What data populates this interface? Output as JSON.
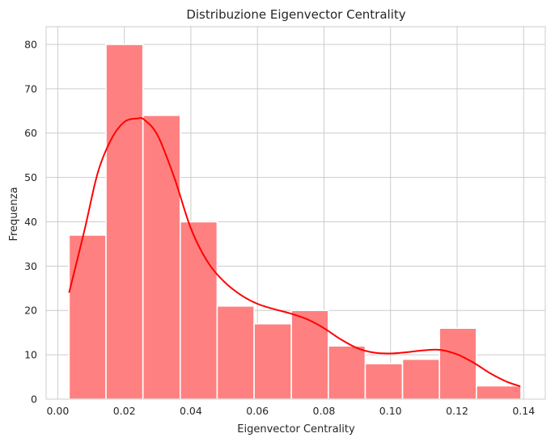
{
  "chart_data": {
    "type": "histogram",
    "title": "Distribuzione Eigenvector Centrality",
    "xlabel": "Eigenvector Centrality",
    "ylabel": "Frequenza",
    "xlim": [
      -0.0035,
      0.1465
    ],
    "ylim": [
      0,
      84
    ],
    "x_ticks": [
      0.0,
      0.02,
      0.04,
      0.06,
      0.08,
      0.1,
      0.12,
      0.14
    ],
    "x_tick_labels": [
      "0.00",
      "0.02",
      "0.04",
      "0.06",
      "0.08",
      "0.10",
      "0.12",
      "0.14"
    ],
    "y_ticks": [
      0,
      10,
      20,
      30,
      40,
      50,
      60,
      70,
      80
    ],
    "y_tick_labels": [
      "0",
      "10",
      "20",
      "30",
      "40",
      "50",
      "60",
      "70",
      "80"
    ],
    "grid": true,
    "bins": [
      {
        "x0": 0.0034,
        "x1": 0.0145,
        "count": 37
      },
      {
        "x0": 0.0145,
        "x1": 0.0256,
        "count": 80
      },
      {
        "x0": 0.0256,
        "x1": 0.0368,
        "count": 64
      },
      {
        "x0": 0.0368,
        "x1": 0.0479,
        "count": 40
      },
      {
        "x0": 0.0479,
        "x1": 0.059,
        "count": 21
      },
      {
        "x0": 0.059,
        "x1": 0.0702,
        "count": 17
      },
      {
        "x0": 0.0702,
        "x1": 0.0813,
        "count": 20
      },
      {
        "x0": 0.0813,
        "x1": 0.0924,
        "count": 12
      },
      {
        "x0": 0.0924,
        "x1": 0.1036,
        "count": 8
      },
      {
        "x0": 0.1036,
        "x1": 0.1147,
        "count": 9
      },
      {
        "x0": 0.1147,
        "x1": 0.1258,
        "count": 16
      },
      {
        "x0": 0.1258,
        "x1": 0.1392,
        "count": 3
      }
    ],
    "kde": {
      "x": [
        0.0034,
        0.008,
        0.012,
        0.016,
        0.02,
        0.024,
        0.026,
        0.03,
        0.035,
        0.04,
        0.045,
        0.05,
        0.055,
        0.06,
        0.065,
        0.07,
        0.075,
        0.08,
        0.085,
        0.09,
        0.095,
        0.1,
        0.105,
        0.11,
        0.115,
        0.12,
        0.125,
        0.13,
        0.135,
        0.139
      ],
      "y": [
        24,
        38,
        51,
        58.5,
        62.5,
        63.3,
        63,
        59.5,
        50,
        38.5,
        31,
        26.5,
        23.5,
        21.5,
        20.3,
        19.3,
        18,
        16,
        13.5,
        11.5,
        10.5,
        10.3,
        10.6,
        11,
        11.1,
        10.1,
        8.2,
        5.8,
        3.9,
        2.9
      ]
    },
    "bar_color": "#ff8080",
    "line_color": "#ff0000"
  }
}
